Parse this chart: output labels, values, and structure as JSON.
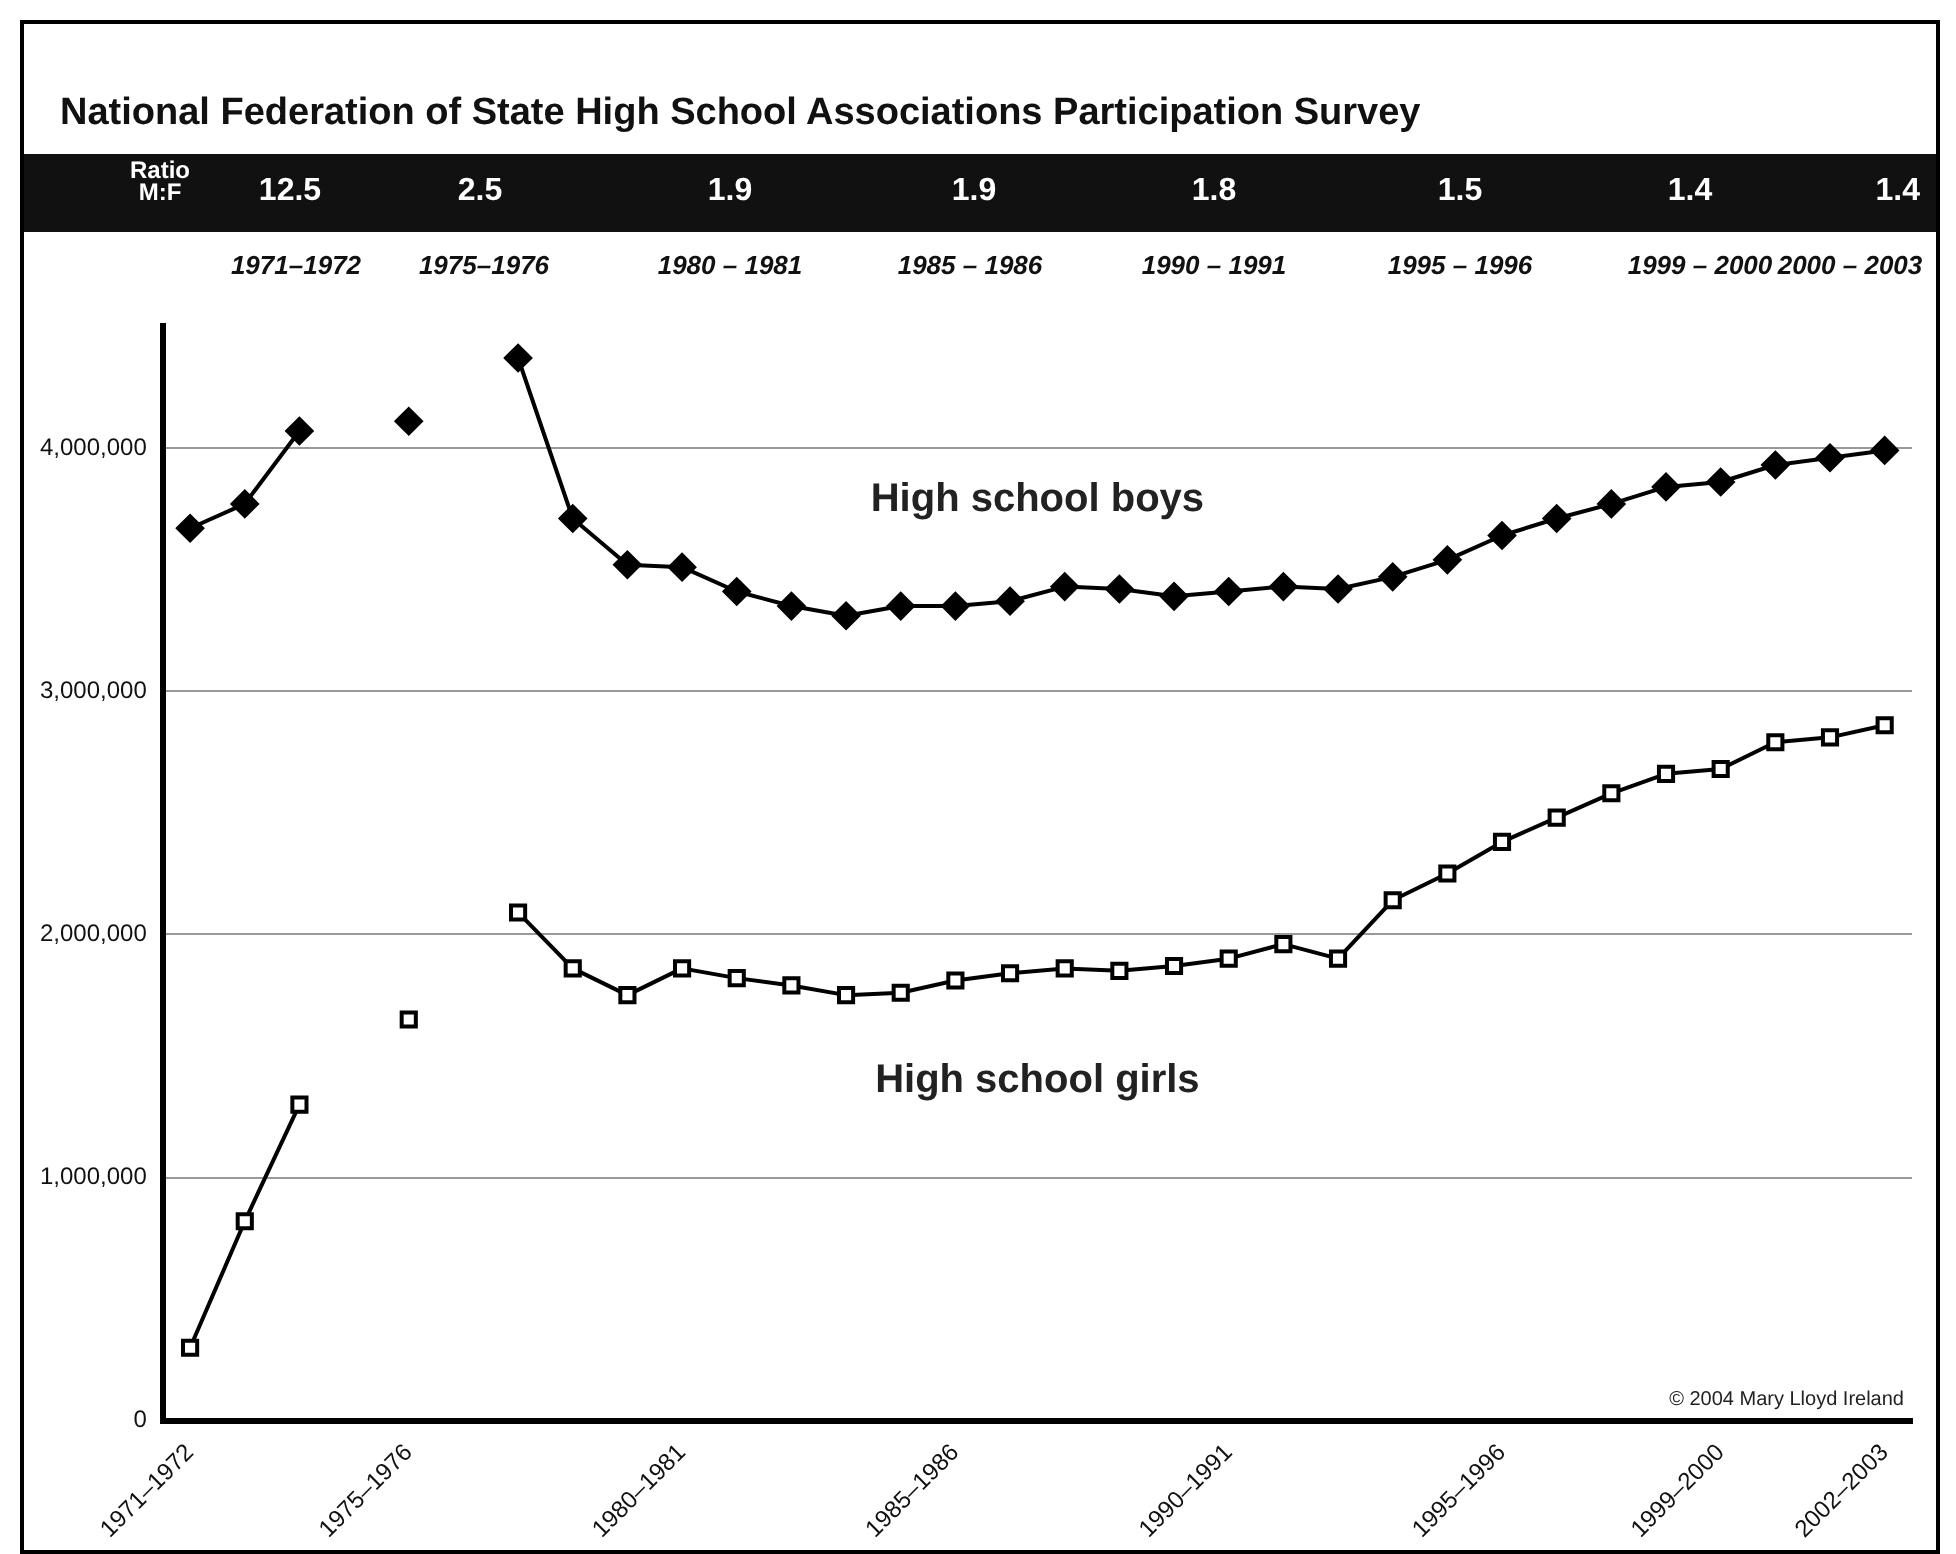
{
  "chart_data": {
    "type": "line",
    "title": "National Federation of State High School Associations Participation Survey",
    "annotations": [
      "Ratio M:F",
      "12.5",
      "2.5",
      "1.9",
      "1.9",
      "1.8",
      "1.5",
      "1.4",
      "1.4",
      "1971–1972",
      "1975–1976",
      "1980 – 1981",
      "1985 – 1986",
      "1990 – 1991",
      "1995 – 1996",
      "1999 – 2000",
      "2000 – 2003",
      "© 2004 Mary Lloyd Ireland"
    ],
    "categories": [
      "1971–1972",
      null,
      null,
      null,
      "1975–1976",
      null,
      null,
      null,
      null,
      "1980–1981",
      null,
      null,
      null,
      null,
      "1985–1986",
      null,
      null,
      null,
      null,
      "1990–1991",
      null,
      null,
      null,
      null,
      "1995–1996",
      null,
      null,
      null,
      "1999–2000",
      null,
      null,
      "2002–2003"
    ],
    "series": [
      {
        "name": "High school boys",
        "color": "#000000",
        "marker": "diamond",
        "values": [
          3670000,
          3770000,
          4070000,
          null,
          4110000,
          null,
          4370000,
          3710000,
          3520000,
          3510000,
          3410000,
          3350000,
          3310000,
          3350000,
          3350000,
          3370000,
          3430000,
          3420000,
          3390000,
          3410000,
          3430000,
          3420000,
          3470000,
          3540000,
          3640000,
          3710000,
          3770000,
          3840000,
          3860000,
          3930000,
          3960000,
          3990000
        ]
      },
      {
        "name": "High school girls",
        "color": "#000000",
        "marker": "square",
        "values": [
          300000,
          820000,
          1300000,
          null,
          1650000,
          null,
          2090000,
          1860000,
          1750000,
          1860000,
          1820000,
          1790000,
          1750000,
          1760000,
          1810000,
          1840000,
          1860000,
          1850000,
          1870000,
          1900000,
          1960000,
          1900000,
          2140000,
          2250000,
          2380000,
          2480000,
          2580000,
          2660000,
          2680000,
          2790000,
          2810000,
          2860000
        ]
      }
    ],
    "ylim": [
      0,
      4500000
    ],
    "yticks": [
      {
        "value": 0,
        "label": "0"
      },
      {
        "value": 1000000,
        "label": "1,000,000"
      },
      {
        "value": 2000000,
        "label": "2,000,000"
      },
      {
        "value": 3000000,
        "label": "3,000,000"
      },
      {
        "value": 4000000,
        "label": "4,000,000"
      }
    ],
    "grid": "y",
    "legend": false,
    "line_style": "solid"
  }
}
